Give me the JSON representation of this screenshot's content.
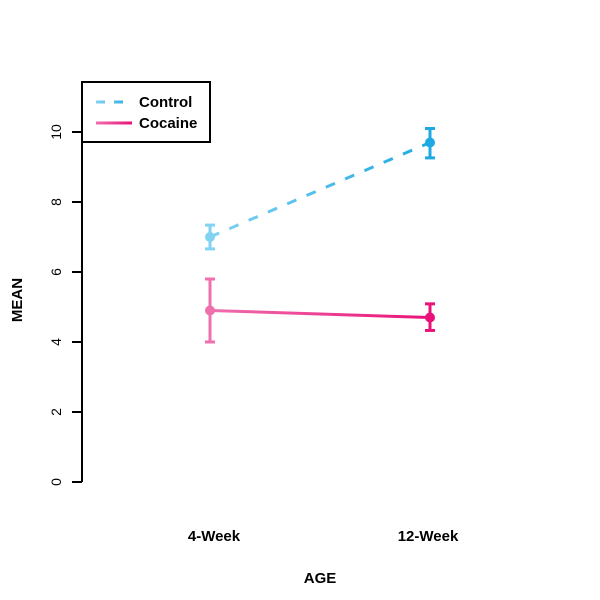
{
  "chart_data": {
    "type": "line",
    "title": "",
    "xlabel": "AGE",
    "ylabel": "MEAN",
    "categories": [
      "4-Week",
      "12-Week"
    ],
    "ylim": [
      0,
      11
    ],
    "yticks": [
      0,
      2,
      4,
      6,
      8,
      10
    ],
    "ytick_labels": [
      "0",
      "2",
      "4",
      "6",
      "8",
      "10"
    ],
    "grid": false,
    "legend": {
      "placement": "top-left",
      "entries": [
        "Control",
        "Cocaine"
      ]
    },
    "series": [
      {
        "name": "Control",
        "line_style": "dashed",
        "color_start": "#82d2f2",
        "color_end": "#1fa9e3",
        "values": [
          7.0,
          9.7
        ],
        "error_upper": [
          7.34,
          10.1
        ],
        "error_lower": [
          6.66,
          9.26
        ]
      },
      {
        "name": "Cocaine",
        "line_style": "solid",
        "color_start": "#f06fad",
        "color_end": "#ea1279",
        "values": [
          4.9,
          4.7
        ],
        "error_upper": [
          5.8,
          5.09
        ],
        "error_lower": [
          4.0,
          4.33
        ]
      }
    ]
  }
}
